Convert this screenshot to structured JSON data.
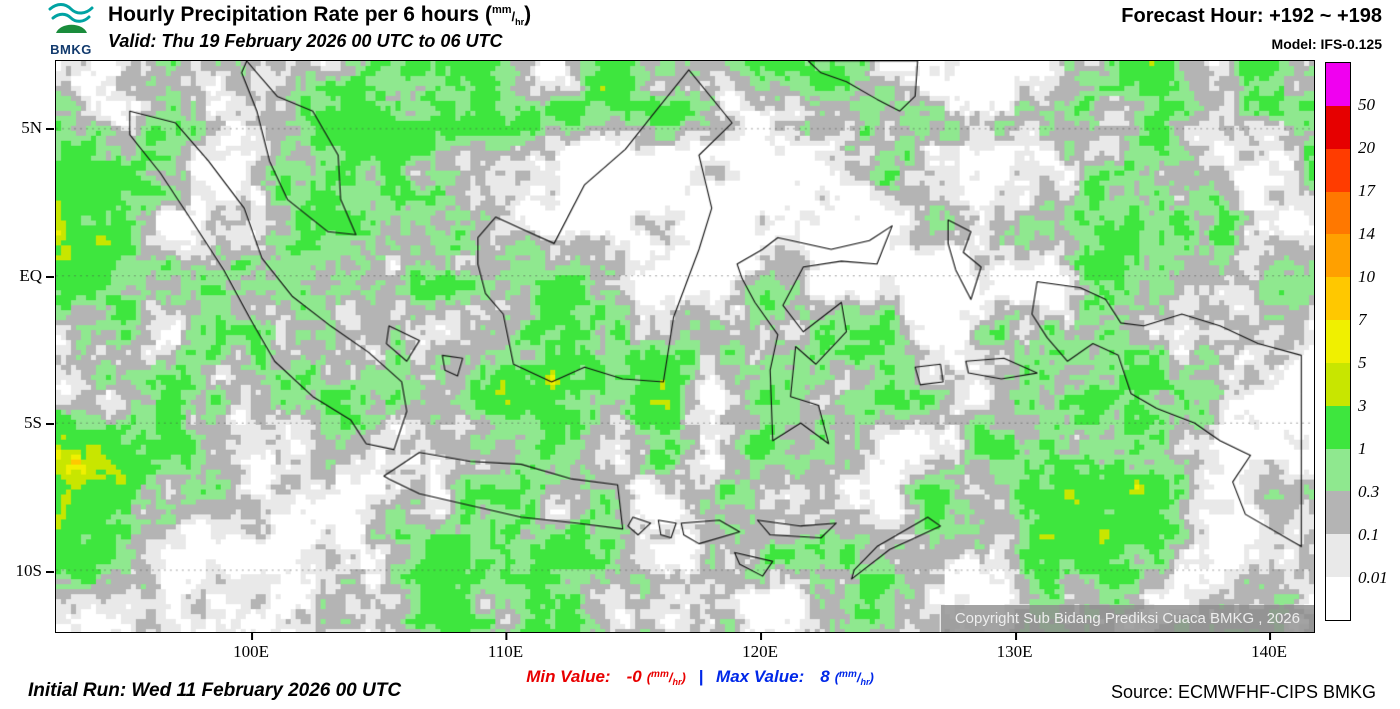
{
  "header": {
    "logo": "BMKG",
    "title_text": "Hourly Precipitation Rate per 6 hours",
    "unit_open": "(",
    "unit_num": "mm",
    "unit_slash": "/",
    "unit_den": "hr",
    "unit_close": ")",
    "valid_text": "Valid: Thu 19 February 2026 00 UTC to 06 UTC",
    "forecast_hour": "Forecast Hour: +192 ~ +198",
    "model": "Model: IFS-0.125"
  },
  "map": {
    "y_ticks": [
      "5N",
      "EQ",
      "5S",
      "10S"
    ],
    "x_ticks": [
      "100E",
      "110E",
      "120E",
      "130E",
      "140E"
    ],
    "copyright": "Copyright Sub Bidang Prediksi Cuaca BMKG , 2026"
  },
  "colorbar": {
    "labels": [
      "50",
      "20",
      "17",
      "14",
      "10",
      "7",
      "5",
      "3",
      "1",
      "0.3",
      "0.1",
      "0.01"
    ],
    "colors": [
      "#f000f0",
      "#e60000",
      "#ff3c00",
      "#ff7800",
      "#ffa000",
      "#ffc800",
      "#f0f000",
      "#c8e600",
      "#3ee63e",
      "#8fe88f",
      "#b4b4b4",
      "#e9e9e9",
      "#ffffff"
    ]
  },
  "footer": {
    "initial_run": "Initial Run: Wed 11 February 2026 00 UTC",
    "min_label": "Min Value:",
    "min_value": "-0",
    "pipe": "|",
    "max_label": "Max Value:",
    "max_value": "8",
    "unit": {
      "open": "(",
      "num": "mm",
      "slash": "/",
      "den": "hr",
      "close": ")"
    },
    "source": "Source: ECMWFHF-CIPS BMKG"
  }
}
